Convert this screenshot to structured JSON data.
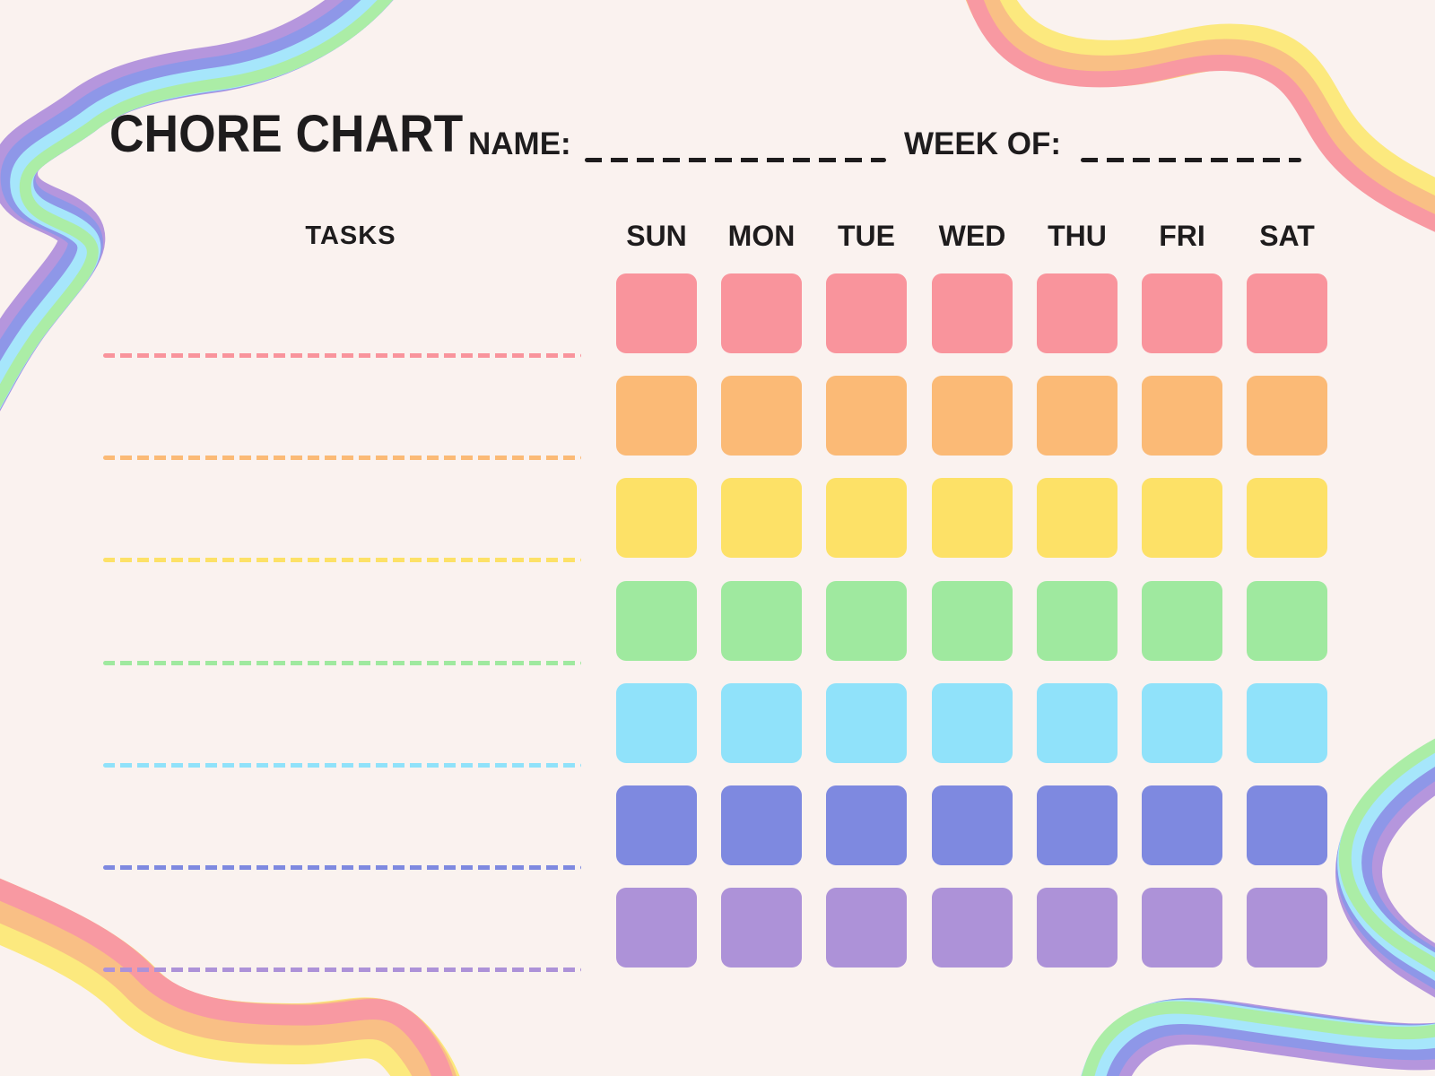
{
  "page": {
    "background": "#faf2ef",
    "text_color": "#1e1c1d"
  },
  "header": {
    "title": "CHORE CHART",
    "name_label": "NAME:",
    "week_label": "WEEK OF:",
    "name_value": "",
    "week_value": ""
  },
  "table": {
    "tasks_header": "TASKS",
    "days": [
      "SUN",
      "MON",
      "TUE",
      "WED",
      "THU",
      "FRI",
      "SAT"
    ],
    "rows": [
      {
        "name": "row-red",
        "color": "#f9949c",
        "task_value": ""
      },
      {
        "name": "row-orange",
        "color": "#fbba76",
        "task_value": ""
      },
      {
        "name": "row-yellow",
        "color": "#fde167",
        "task_value": ""
      },
      {
        "name": "row-green",
        "color": "#9fe99f",
        "task_value": ""
      },
      {
        "name": "row-cyan",
        "color": "#90e2fa",
        "task_value": ""
      },
      {
        "name": "row-blue",
        "color": "#7e89e0",
        "task_value": ""
      },
      {
        "name": "row-purple",
        "color": "#ad92d8",
        "task_value": ""
      }
    ]
  },
  "decor": {
    "ribbon_colors": {
      "purple": "#b596dd",
      "periwinkle": "#8e97e8",
      "cyan": "#a6e6fb",
      "green": "#abeda6",
      "yellow": "#fce97e",
      "orange": "#f9bf85",
      "pink": "#f899a2"
    }
  }
}
